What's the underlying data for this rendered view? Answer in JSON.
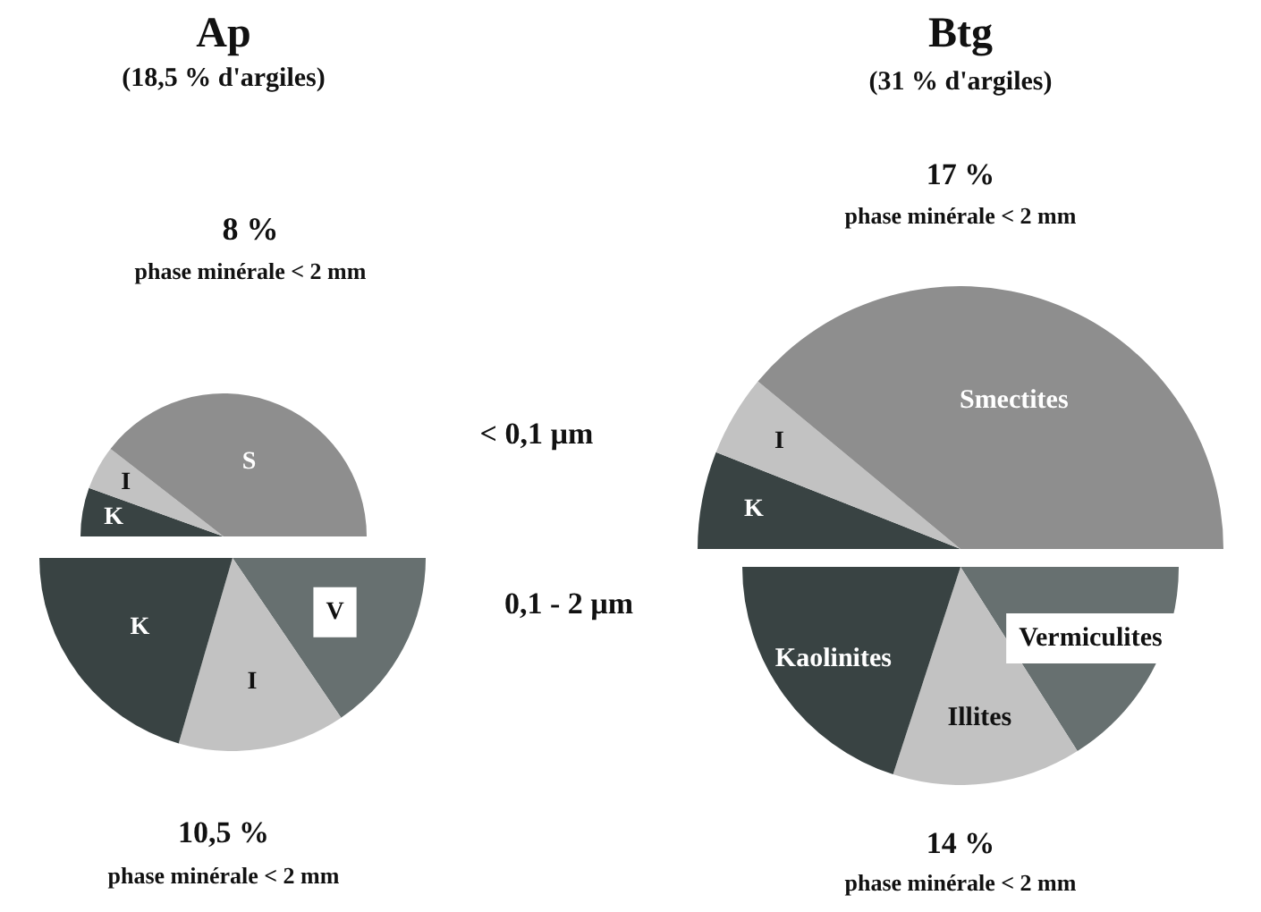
{
  "chart_data": [
    {
      "type": "pie",
      "title": "Ap",
      "subtitle": "(18,5 % d'argiles)",
      "categories": [
        "K",
        "I",
        "S"
      ],
      "values": [
        11,
        10,
        79
      ],
      "colors": [
        "#394343",
        "#c2c2c2",
        "#8e8e8e"
      ],
      "annotations": [
        "8 %",
        "phase minérale < 2 mm",
        "< 0,1 µm"
      ],
      "legend": false
    },
    {
      "type": "pie",
      "categories": [
        "V",
        "I",
        "K"
      ],
      "values": [
        31,
        28,
        41
      ],
      "colors": [
        "#677070",
        "#c2c2c2",
        "#394343"
      ],
      "annotations": [
        "0,1 - 2 µm",
        "10,5 %",
        "phase minérale < 2 mm"
      ],
      "legend": false
    },
    {
      "type": "pie",
      "title": "Btg",
      "subtitle": "(31 % d'argiles)",
      "categories": [
        "K",
        "I",
        "Smectites"
      ],
      "values": [
        12,
        10,
        78
      ],
      "colors": [
        "#394343",
        "#c2c2c2",
        "#8e8e8e"
      ],
      "annotations": [
        "17 %",
        "phase minérale < 2 mm"
      ],
      "legend": false
    },
    {
      "type": "pie",
      "categories": [
        "Vermiculites",
        "Illites",
        "Kaolinites"
      ],
      "values": [
        32,
        28,
        40
      ],
      "colors": [
        "#677070",
        "#c2c2c2",
        "#394343"
      ],
      "annotations": [
        "14 %",
        "phase minérale < 2 mm"
      ],
      "legend": false
    }
  ]
}
